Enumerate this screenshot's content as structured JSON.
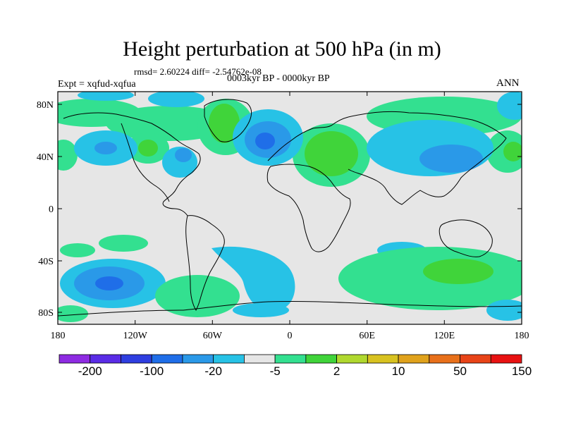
{
  "title": "Height perturbation at 500 hPa (in m)",
  "stats": "rmsd= 2.60224 diff= -2.54762e-08",
  "period": "0003kyr BP - 0000kyr BP",
  "experiment": "Expt = xqfud-xqfua",
  "season": "ANN",
  "map": {
    "lat_ticks": [
      "80N",
      "40N",
      "0",
      "40S",
      "80S"
    ],
    "lon_ticks": [
      "180",
      "120W",
      "60W",
      "0",
      "60E",
      "120E",
      "180"
    ],
    "background_color": "#e6e6e6"
  },
  "colorbar": {
    "labels": [
      "-200",
      "-100",
      "-20",
      "-5",
      "2",
      "10",
      "50",
      "150"
    ],
    "colors": [
      "#8e2be2",
      "#5a2ce6",
      "#2e3ee0",
      "#1f6ee8",
      "#2a99e8",
      "#27c2e6",
      "#e6e6e6",
      "#33e090",
      "#40d43a",
      "#b0d82e",
      "#d8c220",
      "#e0a21c",
      "#e8701a",
      "#e84418",
      "#e81212"
    ]
  }
}
